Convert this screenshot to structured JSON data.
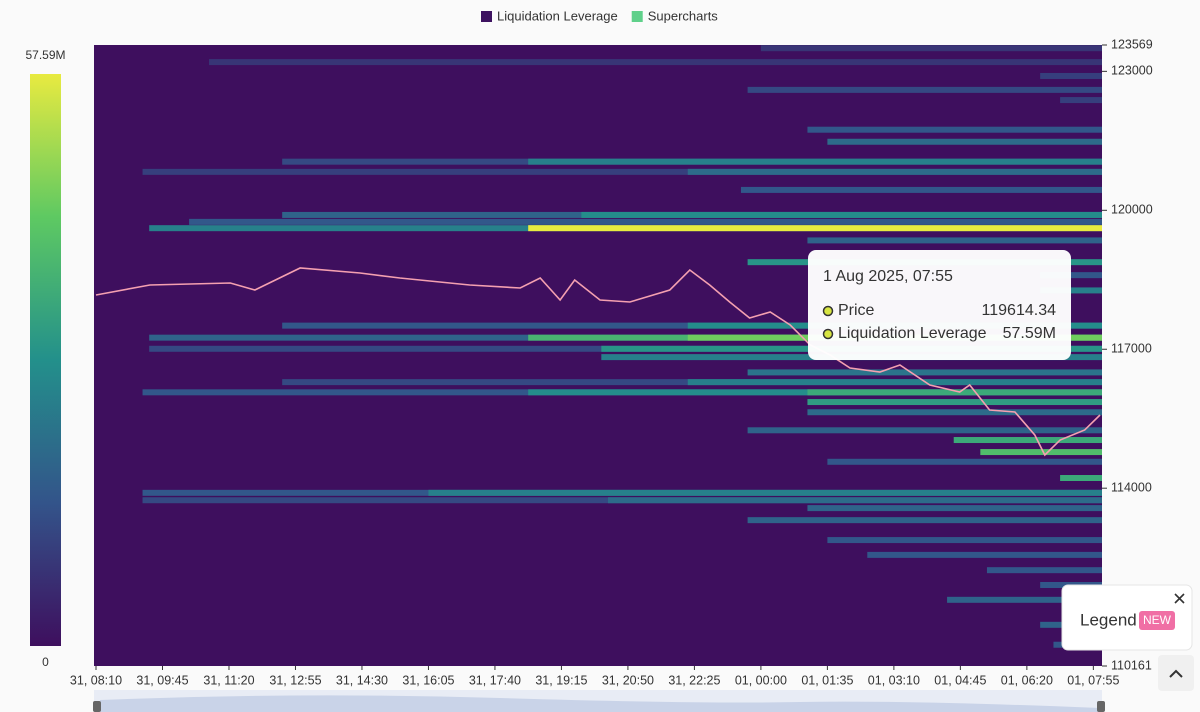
{
  "chart_data": {
    "type": "heatmap",
    "legend": [
      {
        "name": "Liquidation Leverage",
        "color": "#3d1260"
      },
      {
        "name": "Supercharts",
        "color": "#5fd08a"
      }
    ],
    "xlim": [
      0,
      15.1
    ],
    "xticks": [
      {
        "value": 0,
        "label": "31, 08:10"
      },
      {
        "value": 1,
        "label": "31, 09:45"
      },
      {
        "value": 2,
        "label": "31, 11:20"
      },
      {
        "value": 3,
        "label": "31, 12:55"
      },
      {
        "value": 4,
        "label": "31, 14:30"
      },
      {
        "value": 5,
        "label": "31, 16:05"
      },
      {
        "value": 6,
        "label": "31, 17:40"
      },
      {
        "value": 7,
        "label": "31, 19:15"
      },
      {
        "value": 8,
        "label": "31, 20:50"
      },
      {
        "value": 9,
        "label": "31, 22:25"
      },
      {
        "value": 10,
        "label": "01, 00:00"
      },
      {
        "value": 11,
        "label": "01, 01:35"
      },
      {
        "value": 12,
        "label": "01, 03:10"
      },
      {
        "value": 13,
        "label": "01, 04:45"
      },
      {
        "value": 14,
        "label": "01, 06:20"
      },
      {
        "value": 15,
        "label": "01, 07:55"
      }
    ],
    "ylim": [
      110161,
      123569
    ],
    "yticks": [
      110161,
      114000,
      117000,
      120000,
      123000,
      123569
    ],
    "zlim": [
      0,
      57590000
    ],
    "zticks": [
      {
        "value": 57590000,
        "label": "57.59M"
      },
      0
    ],
    "colormap": [
      "#3e0f5e",
      "#33548a",
      "#23908b",
      "#5ec962",
      "#e8ea40"
    ],
    "bands": [
      {
        "price": 123500,
        "start": 10.0,
        "value": 8000000
      },
      {
        "price": 123200,
        "start": 1.7,
        "value": 8000000
      },
      {
        "price": 122900,
        "start": 14.2,
        "value": 10000000
      },
      {
        "price": 122600,
        "start": 9.8,
        "value": 12000000
      },
      {
        "price": 122380,
        "start": 14.5,
        "value": 10000000
      },
      {
        "price": 121740,
        "start": 10.7,
        "value": 15000000
      },
      {
        "price": 121480,
        "start": 11.0,
        "value": 20000000
      },
      {
        "price": 121050,
        "start": 2.8,
        "value": 12000000
      },
      {
        "price": 121050,
        "start": 6.5,
        "value": 25000000
      },
      {
        "price": 120830,
        "start": 0.7,
        "value": 10000000
      },
      {
        "price": 120830,
        "start": 8.9,
        "value": 20000000
      },
      {
        "price": 120440,
        "start": 9.7,
        "value": 15000000
      },
      {
        "price": 119900,
        "start": 2.8,
        "value": 18000000
      },
      {
        "price": 119900,
        "start": 7.3,
        "value": 28000000
      },
      {
        "price": 119750,
        "start": 1.4,
        "value": 15000000
      },
      {
        "price": 119614,
        "start": 0.8,
        "value": 25000000
      },
      {
        "price": 119614,
        "start": 6.5,
        "value": 57590000
      },
      {
        "price": 119350,
        "start": 10.7,
        "value": 18000000
      },
      {
        "price": 118880,
        "start": 9.8,
        "value": 30000000
      },
      {
        "price": 118600,
        "start": 14.2,
        "value": 15000000
      },
      {
        "price": 118270,
        "start": 14.2,
        "value": 25000000
      },
      {
        "price": 117510,
        "start": 2.8,
        "value": 15000000
      },
      {
        "price": 117510,
        "start": 8.9,
        "value": 28000000
      },
      {
        "price": 117250,
        "start": 0.8,
        "value": 18000000
      },
      {
        "price": 117250,
        "start": 6.5,
        "value": 38000000
      },
      {
        "price": 117250,
        "start": 8.9,
        "value": 45000000
      },
      {
        "price": 117010,
        "start": 0.8,
        "value": 12000000
      },
      {
        "price": 117010,
        "start": 7.6,
        "value": 30000000
      },
      {
        "price": 116830,
        "start": 7.6,
        "value": 25000000
      },
      {
        "price": 116500,
        "start": 9.8,
        "value": 22000000
      },
      {
        "price": 116290,
        "start": 2.8,
        "value": 12000000
      },
      {
        "price": 116290,
        "start": 8.9,
        "value": 25000000
      },
      {
        "price": 116070,
        "start": 0.7,
        "value": 15000000
      },
      {
        "price": 116070,
        "start": 6.5,
        "value": 28000000
      },
      {
        "price": 116070,
        "start": 10.7,
        "value": 35000000
      },
      {
        "price": 115860,
        "start": 10.7,
        "value": 32000000
      },
      {
        "price": 115640,
        "start": 10.7,
        "value": 20000000
      },
      {
        "price": 115250,
        "start": 9.8,
        "value": 18000000
      },
      {
        "price": 115040,
        "start": 12.9,
        "value": 35000000
      },
      {
        "price": 114780,
        "start": 13.3,
        "value": 40000000
      },
      {
        "price": 114570,
        "start": 11.0,
        "value": 15000000
      },
      {
        "price": 114220,
        "start": 14.5,
        "value": 35000000
      },
      {
        "price": 113900,
        "start": 0.7,
        "value": 15000000
      },
      {
        "price": 113900,
        "start": 5.0,
        "value": 25000000
      },
      {
        "price": 113740,
        "start": 0.7,
        "value": 12000000
      },
      {
        "price": 113740,
        "start": 7.7,
        "value": 20000000
      },
      {
        "price": 113570,
        "start": 10.7,
        "value": 18000000
      },
      {
        "price": 113310,
        "start": 9.8,
        "value": 18000000
      },
      {
        "price": 112880,
        "start": 11.0,
        "value": 15000000
      },
      {
        "price": 112560,
        "start": 11.6,
        "value": 15000000
      },
      {
        "price": 112230,
        "start": 13.4,
        "value": 15000000
      },
      {
        "price": 111910,
        "start": 14.2,
        "value": 15000000
      },
      {
        "price": 111590,
        "start": 12.8,
        "value": 18000000
      },
      {
        "price": 111050,
        "start": 14.2,
        "value": 18000000
      },
      {
        "price": 110620,
        "start": 14.4,
        "value": 15000000
      }
    ],
    "price": {
      "color": "#f4a0b0",
      "x": [
        0,
        0.81,
        2.02,
        2.39,
        3.07,
        3.97,
        4.57,
        5.62,
        6.38,
        6.68,
        6.98,
        7.2,
        7.58,
        8.03,
        8.63,
        8.93,
        9.23,
        9.53,
        9.83,
        10.14,
        10.44,
        10.74,
        11.04,
        11.34,
        11.79,
        12.09,
        12.54,
        12.99,
        13.14,
        13.44,
        13.82,
        14.12,
        14.27,
        14.5,
        14.87,
        15.1
      ],
      "values": [
        118171,
        118388,
        118431,
        118280,
        118754,
        118647,
        118539,
        118388,
        118323,
        118539,
        118064,
        118496,
        118064,
        118021,
        118280,
        118711,
        118388,
        118021,
        117675,
        117805,
        117524,
        117093,
        116876,
        116596,
        116509,
        116660,
        116228,
        116077,
        116228,
        115689,
        115645,
        115149,
        114717,
        115041,
        115257,
        115581
      ]
    },
    "tooltip": {
      "title": "1 Aug 2025, 07:55",
      "rows": [
        {
          "label": "Price",
          "value": 119614.34
        },
        {
          "label": "Liquidation Leverage",
          "value": 57590000,
          "value_label": "57.59M"
        }
      ]
    },
    "legend_popup": {
      "title": "Legend",
      "badge": "NEW"
    }
  }
}
